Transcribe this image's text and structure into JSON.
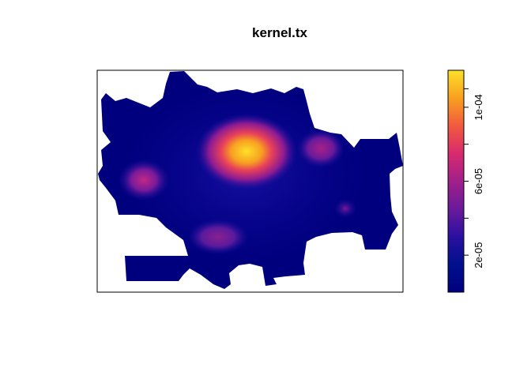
{
  "chart_data": {
    "type": "heatmap",
    "title": "kernel.tx",
    "xlabel": "",
    "ylabel": "",
    "axes_shown": false,
    "plot_box": true,
    "legend": {
      "type": "colorbar",
      "placement": "right",
      "range": [
        0,
        0.00012
      ],
      "ticks": [
        {
          "value": 2e-05,
          "label": "2e-05"
        },
        {
          "value": 6e-05,
          "label": "6e-05"
        },
        {
          "value": 0.0001,
          "label": "1e-04"
        }
      ],
      "minor_ticks": [
        4e-05,
        8e-05,
        0.00011
      ],
      "palette": [
        "#00007f",
        "#00108c",
        "#2a10a0",
        "#6a1a9a",
        "#a0208a",
        "#d82a6e",
        "#f25a3e",
        "#f8a020",
        "#fde02a"
      ]
    },
    "hotspots": [
      {
        "label": "center-north",
        "peak": 0.00012
      },
      {
        "label": "west",
        "peak": 4.5e-05
      },
      {
        "label": "east",
        "peak": 4e-05
      },
      {
        "label": "south",
        "peak": 3.8e-05
      },
      {
        "label": "southeast",
        "peak": 3.2e-05
      }
    ],
    "background_value": 5e-06
  }
}
